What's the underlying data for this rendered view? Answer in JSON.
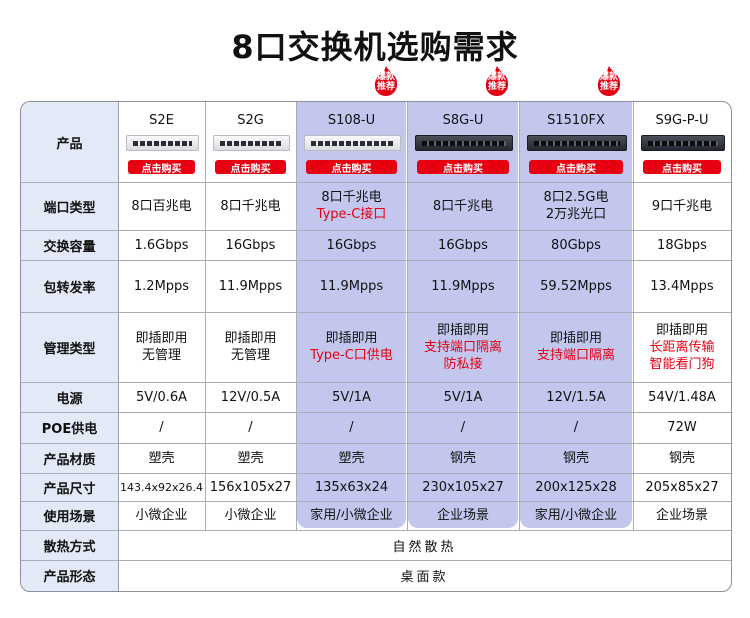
{
  "title": "8口交换机选购需求",
  "buy_label": "点击购买",
  "hot_badge": [
    "爆款",
    "推荐"
  ],
  "colors": {
    "accent_red": "#e60012",
    "highlight": "#c3c7ee",
    "header_bg": "#e3e9f6"
  },
  "row_headers": [
    "产品",
    "端口类型",
    "交换容量",
    "包转发率",
    "管理类型",
    "电源",
    "POE供电",
    "产品材质",
    "产品尺寸",
    "使用场景",
    "散热方式",
    "产品形态"
  ],
  "products": [
    {
      "name": "S2E",
      "device": "white-switch",
      "hot": false,
      "port_type": [
        "8口百兆电"
      ],
      "capacity": "1.6Gbps",
      "forwarding": "1.2Mpps",
      "management": [
        {
          "text": "即插即用",
          "red": false
        },
        {
          "text": "无管理",
          "red": false
        }
      ],
      "power": "5V/0.6A",
      "poe": "/",
      "material": "塑壳",
      "size": "143.4x92x26.4",
      "scenario": "小微企业"
    },
    {
      "name": "S2G",
      "device": "white-switch",
      "hot": false,
      "port_type": [
        "8口千兆电"
      ],
      "capacity": "16Gbps",
      "forwarding": "11.9Mpps",
      "management": [
        {
          "text": "即插即用",
          "red": false
        },
        {
          "text": "无管理",
          "red": false
        }
      ],
      "power": "12V/0.5A",
      "poe": "/",
      "material": "塑壳",
      "size": "156x105x27",
      "scenario": "小微企业"
    },
    {
      "name": "S108-U",
      "device": "white-switch",
      "hot": true,
      "port_type_lines": [
        {
          "text": "8口千兆电",
          "red": false
        },
        {
          "text": "Type-C接口",
          "red": true
        }
      ],
      "capacity": "16Gbps",
      "forwarding": "11.9Mpps",
      "management": [
        {
          "text": "即插即用",
          "red": false
        },
        {
          "text": "Type-C口供电",
          "red": true
        }
      ],
      "power": "5V/1A",
      "poe": "/",
      "material": "塑壳",
      "size": "135x63x24",
      "scenario": "家用/小微企业"
    },
    {
      "name": "S8G-U",
      "device": "dark-switch",
      "hot": true,
      "port_type": [
        "8口千兆电"
      ],
      "capacity": "16Gbps",
      "forwarding": "11.9Mpps",
      "management": [
        {
          "text": "即插即用",
          "red": false
        },
        {
          "text": "支持端口隔离",
          "red": true
        },
        {
          "text": "防私接",
          "red": true
        }
      ],
      "power": "5V/1A",
      "poe": "/",
      "material": "钢壳",
      "size": "230x105x27",
      "scenario": "企业场景"
    },
    {
      "name": "S1510FX",
      "device": "dark-switch",
      "hot": true,
      "port_type": [
        "8口2.5G电",
        "2万兆光口"
      ],
      "capacity": "80Gbps",
      "forwarding": "59.52Mpps",
      "management": [
        {
          "text": "即插即用",
          "red": false
        },
        {
          "text": "支持端口隔离",
          "red": true
        }
      ],
      "power": "12V/1.5A",
      "poe": "/",
      "material": "钢壳",
      "size": "200x125x28",
      "scenario": "家用/小微企业"
    },
    {
      "name": "S9G-P-U",
      "device": "dark-switch",
      "hot": false,
      "port_type": [
        "9口千兆电"
      ],
      "capacity": "18Gbps",
      "forwarding": "13.4Mpps",
      "management": [
        {
          "text": "即插即用",
          "red": false
        },
        {
          "text": "长距离传输",
          "red": true
        },
        {
          "text": "智能看门狗",
          "red": true
        }
      ],
      "power": "54V/1.48A",
      "poe": "72W",
      "material": "钢壳",
      "size": "205x85x27",
      "scenario": "企业场景"
    }
  ],
  "cooling": "自然散热",
  "form_factor": "桌面款"
}
